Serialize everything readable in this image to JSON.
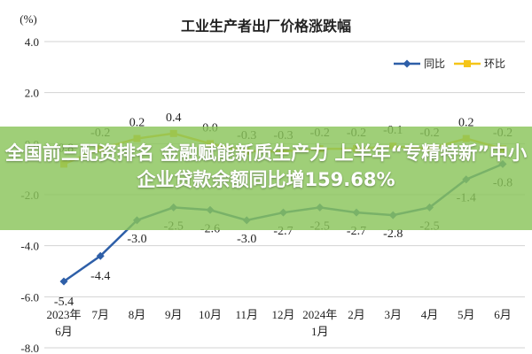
{
  "headline": "全国前三配资排名 金融赋能新质生产力 上半年“专精特新”中小企业贷款余额同比增159.68%",
  "chart_data": {
    "type": "line",
    "title": "工业生产者出厂价格涨跌幅",
    "ylabel": "(%)",
    "ylim": [
      -8.0,
      4.0
    ],
    "yticks": [
      "4.0",
      "2.0",
      "0.0",
      "-2.0",
      "-4.0",
      "-6.0",
      "-8.0"
    ],
    "ytick_values": [
      4,
      2,
      0,
      -2,
      -4,
      -6,
      -8
    ],
    "categories": [
      "2023年\n6月",
      "7月",
      "8月",
      "9月",
      "10月",
      "11月",
      "12月",
      "2024年\n1月",
      "2月",
      "3月",
      "4月",
      "5月",
      "6月"
    ],
    "grid": true,
    "legend_position": "top-right",
    "series": [
      {
        "name": "同比",
        "color": "#2e5fa8",
        "values": [
          -5.4,
          -4.4,
          -3.0,
          -2.5,
          -2.6,
          -3.0,
          -2.7,
          -2.5,
          -2.7,
          -2.8,
          -2.5,
          -1.4,
          -0.8
        ],
        "labels": [
          "-5.4",
          "-4.4",
          "-3.0",
          "-2.5",
          "-2.6",
          "-3.0",
          "-2.7",
          "-2.5",
          "-2.7",
          "-2.8",
          "-2.5",
          "-1.4",
          "-0.8"
        ]
      },
      {
        "name": "环比",
        "color": "#f5c518",
        "values": [
          -0.8,
          -0.2,
          0.2,
          0.4,
          0.0,
          -0.3,
          -0.3,
          -0.2,
          -0.2,
          -0.1,
          -0.2,
          0.2,
          -0.2
        ],
        "labels": [
          "-0.8",
          "-0.2",
          "0.2",
          "0.4",
          "0.0",
          "-0.3",
          "-0.3",
          "-0.2",
          "-0.2",
          "-0.1",
          "-0.2",
          "0.2",
          "-0.2"
        ]
      }
    ]
  }
}
